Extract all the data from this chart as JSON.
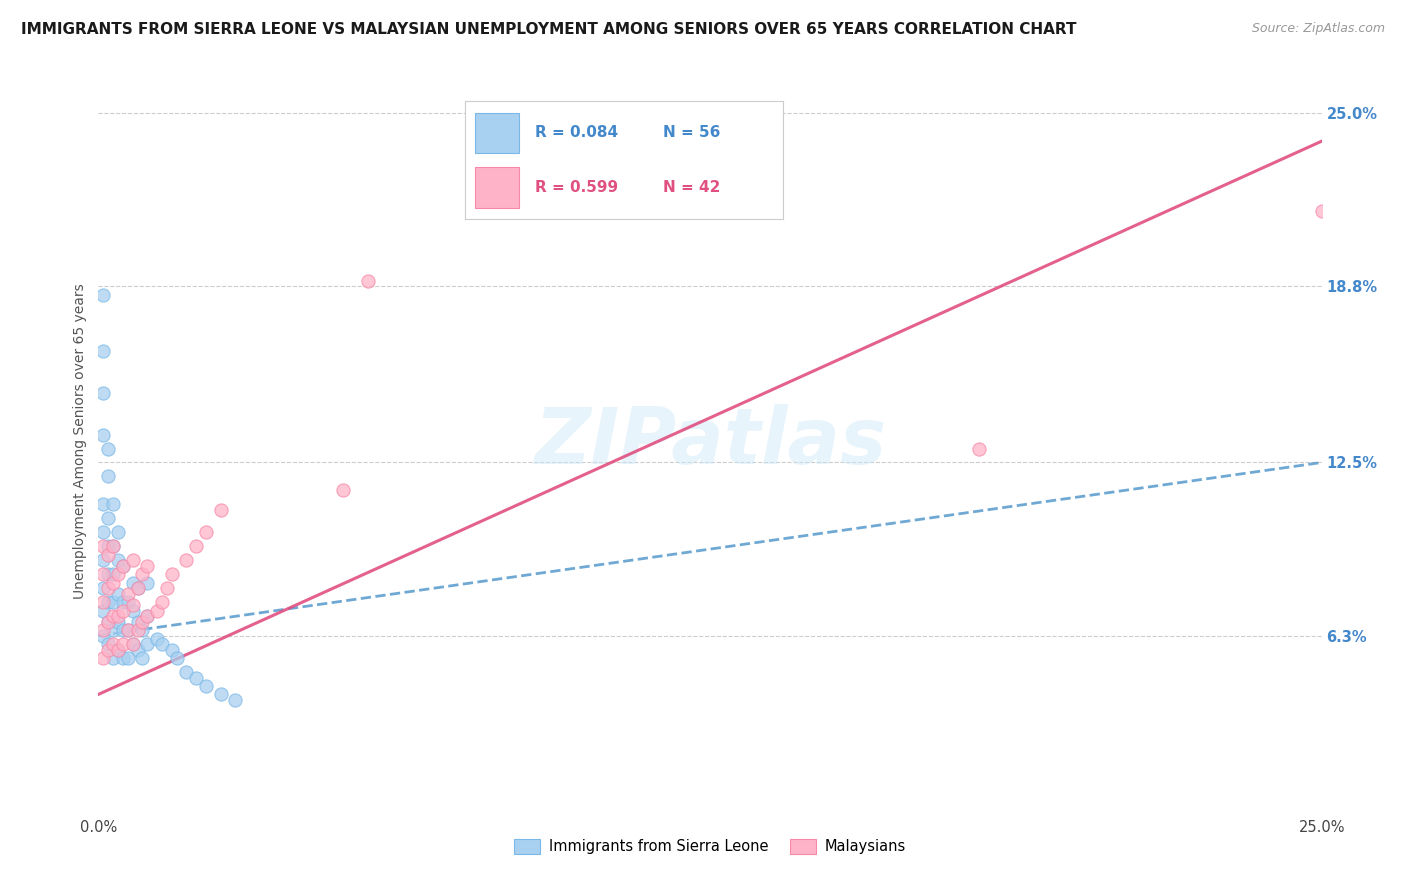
{
  "title": "IMMIGRANTS FROM SIERRA LEONE VS MALAYSIAN UNEMPLOYMENT AMONG SENIORS OVER 65 YEARS CORRELATION CHART",
  "source": "Source: ZipAtlas.com",
  "ylabel": "Unemployment Among Seniors over 65 years",
  "xlim": [
    0.0,
    0.25
  ],
  "ylim": [
    0.0,
    0.265
  ],
  "xtick_positions": [
    0.0,
    0.25
  ],
  "xtick_labels": [
    "0.0%",
    "25.0%"
  ],
  "right_ytick_labels": [
    "6.3%",
    "12.5%",
    "18.8%",
    "25.0%"
  ],
  "right_ytick_values": [
    0.063,
    0.125,
    0.188,
    0.25
  ],
  "legend_label1": "Immigrants from Sierra Leone",
  "legend_label2": "Malaysians",
  "R1": 0.084,
  "N1": 56,
  "R2": 0.599,
  "N2": 42,
  "color_blue": "#a8d0f0",
  "color_blue_edge": "#7ab8e8",
  "color_pink": "#ffb3c8",
  "color_pink_edge": "#f888a8",
  "color_blue_line": "#5599cc",
  "color_pink_line": "#e05080",
  "watermark": "ZIPatlas",
  "sl_trend_x0": 0.0,
  "sl_trend_y0": 0.063,
  "sl_trend_x1": 0.25,
  "sl_trend_y1": 0.125,
  "my_trend_x0": 0.0,
  "my_trend_y0": 0.042,
  "my_trend_x1": 0.25,
  "my_trend_y1": 0.24,
  "sierra_leone_x": [
    0.001,
    0.001,
    0.001,
    0.001,
    0.001,
    0.001,
    0.001,
    0.001,
    0.001,
    0.001,
    0.002,
    0.002,
    0.002,
    0.002,
    0.002,
    0.002,
    0.002,
    0.002,
    0.003,
    0.003,
    0.003,
    0.003,
    0.003,
    0.003,
    0.004,
    0.004,
    0.004,
    0.004,
    0.004,
    0.005,
    0.005,
    0.005,
    0.005,
    0.006,
    0.006,
    0.006,
    0.007,
    0.007,
    0.007,
    0.008,
    0.008,
    0.008,
    0.009,
    0.009,
    0.01,
    0.01,
    0.01,
    0.012,
    0.013,
    0.015,
    0.016,
    0.018,
    0.02,
    0.022,
    0.025,
    0.028
  ],
  "sierra_leone_y": [
    0.063,
    0.072,
    0.08,
    0.09,
    0.1,
    0.11,
    0.135,
    0.15,
    0.165,
    0.185,
    0.06,
    0.068,
    0.075,
    0.085,
    0.095,
    0.105,
    0.12,
    0.13,
    0.055,
    0.065,
    0.075,
    0.085,
    0.095,
    0.11,
    0.058,
    0.068,
    0.078,
    0.09,
    0.1,
    0.055,
    0.065,
    0.075,
    0.088,
    0.055,
    0.065,
    0.075,
    0.06,
    0.072,
    0.082,
    0.058,
    0.068,
    0.08,
    0.055,
    0.065,
    0.06,
    0.07,
    0.082,
    0.062,
    0.06,
    0.058,
    0.055,
    0.05,
    0.048,
    0.045,
    0.042,
    0.04
  ],
  "malaysians_x": [
    0.001,
    0.001,
    0.001,
    0.001,
    0.001,
    0.002,
    0.002,
    0.002,
    0.002,
    0.003,
    0.003,
    0.003,
    0.003,
    0.004,
    0.004,
    0.004,
    0.005,
    0.005,
    0.005,
    0.006,
    0.006,
    0.007,
    0.007,
    0.007,
    0.008,
    0.008,
    0.009,
    0.009,
    0.01,
    0.01,
    0.012,
    0.013,
    0.014,
    0.015,
    0.018,
    0.02,
    0.022,
    0.025,
    0.05,
    0.055,
    0.18,
    0.25
  ],
  "malaysians_y": [
    0.055,
    0.065,
    0.075,
    0.085,
    0.095,
    0.058,
    0.068,
    0.08,
    0.092,
    0.06,
    0.07,
    0.082,
    0.095,
    0.058,
    0.07,
    0.085,
    0.06,
    0.072,
    0.088,
    0.065,
    0.078,
    0.06,
    0.074,
    0.09,
    0.065,
    0.08,
    0.068,
    0.085,
    0.07,
    0.088,
    0.072,
    0.075,
    0.08,
    0.085,
    0.09,
    0.095,
    0.1,
    0.108,
    0.115,
    0.19,
    0.13,
    0.215
  ]
}
